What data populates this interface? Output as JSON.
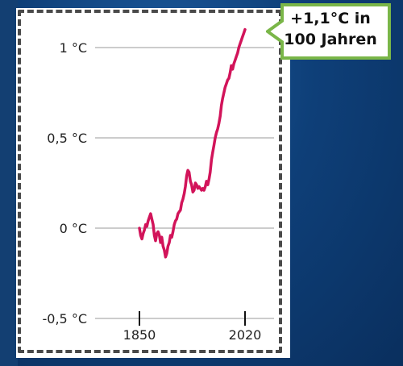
{
  "callout": {
    "line1": "+1,1°C in",
    "line2": "100 Jahren"
  },
  "colors": {
    "background": "#0d3f7a",
    "line": "#d2145a",
    "callout_border": "#7ab648",
    "frame": "#4a4a4a"
  },
  "chart_data": {
    "type": "line",
    "title": "",
    "xlabel": "",
    "ylabel": "",
    "ytick_labels": [
      "1 °C",
      "0,5 °C",
      "0 °C",
      "-0,5 °C"
    ],
    "ytick_values": [
      1,
      0.5,
      0,
      -0.5
    ],
    "xtick_labels": [
      "1850",
      "2020"
    ],
    "xtick_values": [
      1850,
      2020
    ],
    "ylim": [
      -0.5,
      1.2
    ],
    "xlim": [
      1850,
      2020
    ],
    "grid": true,
    "series": [
      {
        "x": [
          1850,
          1852,
          1854,
          1856,
          1858,
          1860,
          1862,
          1864,
          1866,
          1868,
          1870,
          1872,
          1874,
          1876,
          1878,
          1880,
          1882,
          1884,
          1886,
          1888,
          1890,
          1892,
          1894,
          1896,
          1898,
          1900,
          1902,
          1904,
          1906,
          1908,
          1910,
          1912,
          1914,
          1916,
          1918,
          1920,
          1922,
          1924,
          1926,
          1928,
          1930,
          1932,
          1934,
          1936,
          1938,
          1940,
          1942,
          1944,
          1946,
          1948,
          1950,
          1952,
          1954,
          1956,
          1958,
          1960,
          1962,
          1964,
          1966,
          1968,
          1970,
          1972,
          1974,
          1976,
          1978,
          1980,
          1982,
          1984,
          1986,
          1988,
          1990,
          1992,
          1994,
          1996,
          1998,
          2000,
          2002,
          2004,
          2006,
          2008,
          2010,
          2012,
          2014,
          2016,
          2018,
          2020
        ],
        "y": [
          0.0,
          -0.04,
          -0.06,
          -0.03,
          -0.01,
          0.02,
          0.01,
          0.04,
          0.06,
          0.08,
          0.05,
          0.02,
          -0.04,
          -0.07,
          -0.03,
          -0.02,
          -0.04,
          -0.08,
          -0.05,
          -0.1,
          -0.12,
          -0.16,
          -0.14,
          -0.1,
          -0.08,
          -0.04,
          -0.05,
          -0.02,
          0.02,
          0.04,
          0.05,
          0.08,
          0.09,
          0.1,
          0.14,
          0.16,
          0.19,
          0.23,
          0.29,
          0.32,
          0.31,
          0.26,
          0.24,
          0.2,
          0.21,
          0.25,
          0.24,
          0.22,
          0.23,
          0.22,
          0.21,
          0.22,
          0.21,
          0.23,
          0.26,
          0.24,
          0.27,
          0.31,
          0.38,
          0.42,
          0.46,
          0.5,
          0.53,
          0.55,
          0.58,
          0.62,
          0.68,
          0.72,
          0.75,
          0.78,
          0.8,
          0.82,
          0.83,
          0.86,
          0.9,
          0.88,
          0.91,
          0.93,
          0.95,
          0.97,
          1.0,
          1.02,
          1.04,
          1.06,
          1.08,
          1.1
        ]
      }
    ]
  }
}
